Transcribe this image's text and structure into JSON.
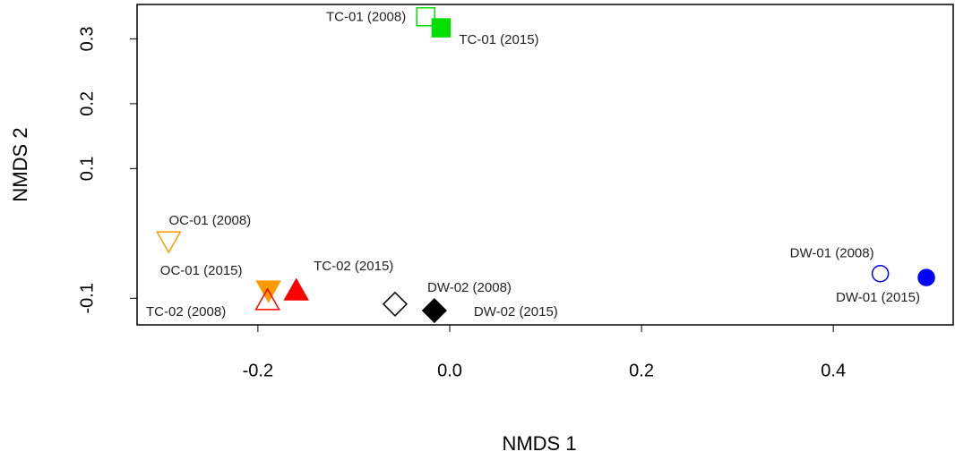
{
  "chart_data": {
    "type": "scatter",
    "x_label": "NMDS 1",
    "y_label": "NMDS 2",
    "xlim": [
      -0.326,
      0.525
    ],
    "ylim": [
      -0.141,
      0.353
    ],
    "xticks": [
      -0.2,
      {
        "value": 0,
        "label": "0.0"
      },
      0.2,
      0.4
    ],
    "yticks": [
      -0.1,
      0.1,
      0.2,
      0.3
    ],
    "series": [
      {
        "name": "TC-01 (2008)",
        "color": "#00e000",
        "marker": "square",
        "filled": false,
        "x": [
          -0.025
        ],
        "y": [
          0.334
        ]
      },
      {
        "name": "TC-01 (2015)",
        "color": "#00e000",
        "marker": "square",
        "filled": true,
        "x": [
          -0.009
        ],
        "y": [
          0.317
        ]
      },
      {
        "name": "OC-01 (2008)",
        "color": "#ff9900",
        "marker": "triangle-down",
        "filled": false,
        "x": [
          -0.293
        ],
        "y": [
          -0.01
        ]
      },
      {
        "name": "OC-01 (2015)",
        "color": "#ff9900",
        "marker": "triangle-down",
        "filled": true,
        "x": [
          -0.189
        ],
        "y": [
          -0.086
        ]
      },
      {
        "name": "TC-02 (2015)",
        "color": "#ff0000",
        "marker": "triangle-up",
        "filled": true,
        "x": [
          -0.16
        ],
        "y": [
          -0.09
        ]
      },
      {
        "name": "TC-02 (2008)",
        "color": "#ff0000",
        "marker": "triangle-up",
        "filled": false,
        "x": [
          -0.19
        ],
        "y": [
          -0.105
        ]
      },
      {
        "name": "DW-02 (2008)",
        "color": "#000000",
        "marker": "diamond",
        "filled": false,
        "x": [
          -0.057
        ],
        "y": [
          -0.109
        ]
      },
      {
        "name": "DW-02 (2015)",
        "color": "#000000",
        "marker": "diamond",
        "filled": true,
        "x": [
          -0.016
        ],
        "y": [
          -0.119
        ]
      },
      {
        "name": "DW-01 (2008)",
        "color": "#0000ff",
        "marker": "circle",
        "filled": false,
        "x": [
          0.449
        ],
        "y": [
          -0.062
        ]
      },
      {
        "name": "DW-01 (2015)",
        "color": "#0000ff",
        "marker": "circle",
        "filled": true,
        "x": [
          0.497
        ],
        "y": [
          -0.068
        ]
      }
    ]
  }
}
